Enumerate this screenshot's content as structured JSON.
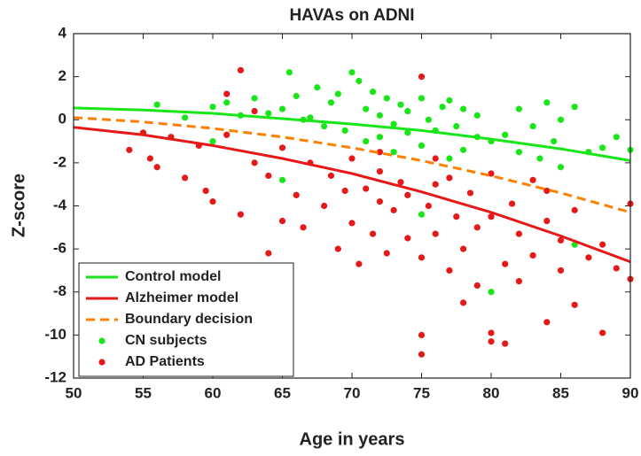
{
  "chart_data": {
    "type": "scatter",
    "title": "HAVAs on ADNI",
    "x_label": "Age in years",
    "y_label": "Z-score",
    "xlim": [
      50,
      90
    ],
    "ylim": [
      -12,
      4
    ],
    "xticks": [
      50,
      55,
      60,
      65,
      70,
      75,
      80,
      85,
      90
    ],
    "yticks": [
      4,
      2,
      0,
      -2,
      -4,
      -6,
      -8,
      -10,
      -12
    ],
    "grid": false,
    "legend": "lower left",
    "series": [
      {
        "name": "Control model",
        "color": "#19e619",
        "mode": "line",
        "dash": false,
        "x": [
          50,
          55,
          60,
          65,
          70,
          75,
          80,
          85,
          90
        ],
        "values": [
          0.55,
          0.45,
          0.3,
          0.05,
          -0.2,
          -0.5,
          -0.9,
          -1.35,
          -1.9
        ]
      },
      {
        "name": "Alzheimer model",
        "color": "#e61919",
        "mode": "line",
        "dash": false,
        "x": [
          50,
          55,
          60,
          65,
          70,
          75,
          80,
          85,
          90
        ],
        "values": [
          -0.35,
          -0.7,
          -1.2,
          -1.8,
          -2.5,
          -3.35,
          -4.3,
          -5.4,
          -6.6
        ]
      },
      {
        "name": "Boundary decision",
        "color": "#ff8000",
        "mode": "line",
        "dash": true,
        "x": [
          50,
          55,
          60,
          65,
          70,
          75,
          80,
          85,
          90
        ],
        "values": [
          0.1,
          -0.1,
          -0.4,
          -0.8,
          -1.3,
          -1.9,
          -2.6,
          -3.4,
          -4.3
        ]
      },
      {
        "name": "CN subjects",
        "color": "#19e619",
        "mode": "markers",
        "x": [
          56,
          58,
          60,
          61,
          62,
          63,
          64,
          65,
          65.5,
          66,
          66.5,
          67,
          67.5,
          68,
          68.5,
          69,
          69.5,
          70,
          70.5,
          71,
          71,
          71.5,
          72,
          72,
          72.5,
          73,
          73,
          73.5,
          74,
          74,
          75,
          75,
          75.5,
          76,
          76.5,
          77,
          77,
          77.5,
          78,
          78,
          79,
          79,
          80,
          80,
          81,
          82,
          82,
          83,
          83.5,
          84,
          84.5,
          85,
          85,
          86,
          86,
          87,
          88,
          89,
          90,
          75,
          65,
          60
        ],
        "values": [
          0.7,
          0.1,
          0.6,
          0.8,
          0.2,
          1.0,
          0.3,
          0.5,
          2.2,
          1.1,
          0.0,
          0.1,
          1.5,
          -0.3,
          0.8,
          1.2,
          -0.5,
          2.2,
          1.8,
          0.5,
          -1.0,
          1.3,
          0.2,
          -0.8,
          1.0,
          -0.2,
          -1.5,
          0.7,
          -0.6,
          0.4,
          1.0,
          -1.2,
          0.0,
          -0.5,
          0.6,
          -1.8,
          0.9,
          -0.3,
          0.5,
          -1.4,
          -0.8,
          0.2,
          -1.0,
          -8.0,
          -0.7,
          -1.5,
          0.5,
          -0.3,
          -1.8,
          0.8,
          -1.0,
          -2.2,
          0.0,
          0.6,
          -5.8,
          -1.5,
          -1.3,
          -0.8,
          -1.4,
          -4.4,
          -2.8,
          -1.0
        ]
      },
      {
        "name": "AD Patients",
        "color": "#e61919",
        "mode": "markers",
        "x": [
          54,
          55,
          55.5,
          56,
          57,
          58,
          59,
          59.5,
          60,
          61,
          61,
          62,
          62,
          63,
          63,
          64,
          64,
          65,
          65,
          66,
          66.5,
          67,
          68,
          68.5,
          69,
          69.5,
          70,
          70,
          70.5,
          71,
          71.5,
          72,
          72,
          72.5,
          73,
          73.5,
          74,
          74,
          75,
          75,
          75,
          75,
          75.5,
          76,
          76,
          77,
          77,
          77.5,
          78,
          78,
          78.5,
          79,
          79,
          80,
          80,
          80,
          80,
          81,
          81,
          81.5,
          82,
          82,
          83,
          83,
          84,
          84,
          85,
          85,
          86,
          86,
          87,
          88,
          88,
          89,
          90,
          90,
          72,
          76,
          84
        ],
        "values": [
          -1.4,
          -0.6,
          -1.8,
          -2.2,
          -0.8,
          -2.7,
          -1.2,
          -3.3,
          -3.8,
          -0.7,
          1.2,
          2.3,
          -4.4,
          -2.0,
          0.4,
          -6.2,
          -2.6,
          -1.3,
          -4.7,
          -3.5,
          -5.0,
          -2.0,
          -4.0,
          -2.6,
          -6.0,
          -3.3,
          -4.8,
          -1.8,
          -6.7,
          -3.2,
          -5.3,
          -2.4,
          -3.8,
          -6.2,
          -4.2,
          -2.9,
          -5.5,
          -3.5,
          -10.0,
          -10.9,
          2.0,
          -6.4,
          -4.0,
          -3.0,
          -5.3,
          -7.0,
          -2.7,
          -4.5,
          -8.5,
          -6.0,
          -3.4,
          -5.0,
          -7.7,
          -9.9,
          -10.3,
          -4.5,
          -2.5,
          -10.4,
          -6.7,
          -3.9,
          -7.5,
          -5.3,
          -6.3,
          -2.8,
          -9.4,
          -4.7,
          -7.0,
          -5.6,
          -8.6,
          -4.2,
          -6.4,
          -9.9,
          -5.8,
          -6.9,
          -7.4,
          -3.9,
          -1.5,
          -1.8,
          -3.3
        ]
      }
    ]
  }
}
